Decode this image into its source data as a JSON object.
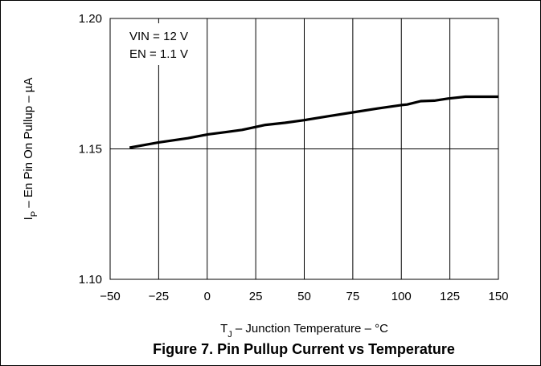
{
  "chart_data": {
    "type": "line",
    "title": "",
    "xlabel": {
      "t": "T",
      "t_sub": "J",
      "rest": " – Junction Temperature – °C"
    },
    "ylabel": {
      "i": "I",
      "i_sub": "P",
      "rest": " – En Pin On Pullup – µA"
    },
    "xlim": [
      -50,
      150
    ],
    "ylim": [
      1.1,
      1.2
    ],
    "x_ticks": [
      -50,
      -25,
      0,
      25,
      50,
      75,
      100,
      125,
      150
    ],
    "x_tick_labels": [
      "−50",
      "−25",
      "0",
      "25",
      "50",
      "75",
      "100",
      "125",
      "150"
    ],
    "y_ticks": [
      1.1,
      1.15,
      1.2
    ],
    "y_tick_labels": [
      "1.10",
      "1.15",
      "1.20"
    ],
    "grid": true,
    "annotations": [
      "VIN = 12 V",
      "EN = 1.1 V"
    ],
    "series": [
      {
        "color": "#000000",
        "x": [
          -40,
          -25,
          -10,
          0,
          10,
          18,
          25,
          30,
          40,
          50,
          62,
          75,
          88,
          100,
          103,
          110,
          117,
          124,
          133,
          150
        ],
        "y": [
          1.1505,
          1.1525,
          1.1541,
          1.1555,
          1.1565,
          1.1573,
          1.1584,
          1.1592,
          1.16,
          1.161,
          1.1625,
          1.164,
          1.1655,
          1.1668,
          1.167,
          1.1683,
          1.1685,
          1.1693,
          1.17,
          1.17
        ]
      }
    ]
  },
  "caption": "Figure 7. Pin Pullup Current vs Temperature"
}
